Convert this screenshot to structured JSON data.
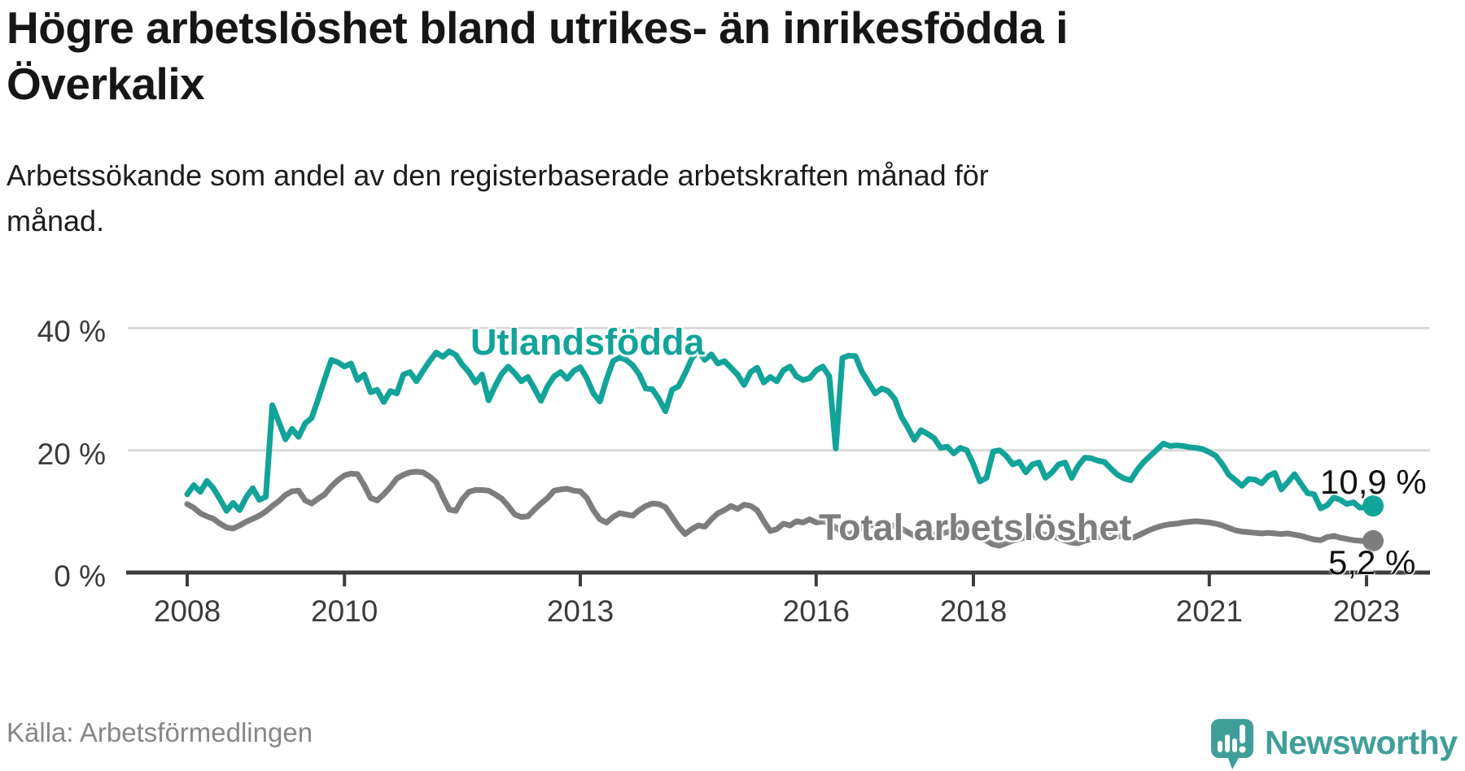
{
  "header": {
    "title": "Högre arbetslöshet bland utrikes- än inrikesfödda i Överkalix",
    "subtitle": "Arbetssökande som andel av den registerbaserade arbetskraften månad för månad."
  },
  "chart": {
    "labels": {
      "series1": "Utlandsfödda",
      "series2": "Total arbetslöshet"
    },
    "end_labels": {
      "series1": "10,9 %",
      "series2": "5,2 %"
    },
    "colors": {
      "series1": "#12a399",
      "series2": "#7d7d7d",
      "grid": "#d9d9d9",
      "axis": "#3d3d3d",
      "text": "#3b3b3b"
    }
  },
  "chart_data": {
    "type": "line",
    "title": "Högre arbetslöshet bland utrikes- än inrikesfödda i Överkalix",
    "xlabel": "",
    "ylabel": "Arbetssökande som andel av den registerbaserade arbetskraften",
    "x_start_year": 2008,
    "x_months_per_point": 1,
    "x_ticks": [
      2008,
      2010,
      2013,
      2016,
      2018,
      2021,
      2023
    ],
    "y_ticks": [
      0,
      20,
      40
    ],
    "y_tick_suffix": " %",
    "y_gridlines": [
      20,
      40
    ],
    "ylim": [
      0,
      42
    ],
    "grid": true,
    "legend_position": "inline-labels",
    "series": [
      {
        "name": "Utlandsfödda",
        "color": "#12a399",
        "end_value_label": "10,9 %",
        "values": [
          12.8,
          14.3,
          13.2,
          15.0,
          13.8,
          12.0,
          10.1,
          11.4,
          10.2,
          12.3,
          13.8,
          11.9,
          12.4,
          27.4,
          24.6,
          21.8,
          23.5,
          22.2,
          24.4,
          25.3,
          28.4,
          31.7,
          34.8,
          34.4,
          33.7,
          34.2,
          31.5,
          32.4,
          29.5,
          29.9,
          27.9,
          29.7,
          29.3,
          32.4,
          32.8,
          31.3,
          33.0,
          34.6,
          36.0,
          35.3,
          36.2,
          35.6,
          34.0,
          32.8,
          31.1,
          32.4,
          28.2,
          30.5,
          32.5,
          33.7,
          32.6,
          31.3,
          32.0,
          30.1,
          28.1,
          30.5,
          32.1,
          32.8,
          31.7,
          33.0,
          33.6,
          31.8,
          29.3,
          28.0,
          31.6,
          34.6,
          35.2,
          34.8,
          33.9,
          32.4,
          30.1,
          30.0,
          28.4,
          26.4,
          29.9,
          30.5,
          32.6,
          35.0,
          36.3,
          34.8,
          35.7,
          34.2,
          34.6,
          33.5,
          32.4,
          30.7,
          32.8,
          33.5,
          31.1,
          32.0,
          31.3,
          33.1,
          33.7,
          32.1,
          31.5,
          31.8,
          33.1,
          33.7,
          32.1,
          20.3,
          35.1,
          35.5,
          35.4,
          32.8,
          31.1,
          29.3,
          30.1,
          29.7,
          28.4,
          25.5,
          23.7,
          21.7,
          23.3,
          22.7,
          22.0,
          20.4,
          20.6,
          19.5,
          20.4,
          20.0,
          17.7,
          14.9,
          15.5,
          19.8,
          20.0,
          19.1,
          17.7,
          18.1,
          16.4,
          17.7,
          18.0,
          15.5,
          16.4,
          17.7,
          18.0,
          15.5,
          17.5,
          18.8,
          18.7,
          18.3,
          18.1,
          17.0,
          16.0,
          15.4,
          15.1,
          16.8,
          18.1,
          19.1,
          20.1,
          21.1,
          20.7,
          20.8,
          20.7,
          20.5,
          20.4,
          20.2,
          19.7,
          19.1,
          17.7,
          16.0,
          15.1,
          14.2,
          15.3,
          15.2,
          14.6,
          15.8,
          16.3,
          13.6,
          14.8,
          16.1,
          14.5,
          13.0,
          12.8,
          10.5,
          11.0,
          12.3,
          11.9,
          11.2,
          11.5,
          10.6,
          10.7,
          10.9
        ]
      },
      {
        "name": "Total arbetslöshet",
        "color": "#7d7d7d",
        "end_value_label": "5,2 %",
        "values": [
          11.2,
          10.6,
          9.7,
          9.2,
          8.8,
          8.0,
          7.4,
          7.2,
          7.7,
          8.3,
          8.8,
          9.3,
          10.0,
          10.9,
          11.7,
          12.7,
          13.3,
          13.4,
          11.8,
          11.3,
          12.1,
          12.8,
          14.1,
          15.1,
          15.9,
          16.2,
          16.1,
          14.3,
          12.2,
          11.8,
          12.8,
          14.0,
          15.4,
          16.0,
          16.4,
          16.5,
          16.4,
          15.7,
          14.8,
          12.4,
          10.3,
          10.1,
          12.0,
          13.2,
          13.5,
          13.5,
          13.4,
          12.8,
          12.1,
          10.9,
          9.5,
          9.1,
          9.2,
          10.3,
          11.3,
          12.2,
          13.4,
          13.6,
          13.7,
          13.4,
          13.3,
          12.2,
          10.2,
          8.7,
          8.2,
          9.1,
          9.7,
          9.5,
          9.3,
          10.2,
          10.9,
          11.3,
          11.2,
          10.7,
          9.1,
          7.5,
          6.3,
          7.1,
          7.7,
          7.5,
          8.7,
          9.7,
          10.2,
          10.9,
          10.4,
          11.1,
          10.9,
          10.2,
          8.4,
          6.8,
          7.1,
          8.0,
          7.7,
          8.4,
          8.2,
          8.7,
          8.2,
          8.4,
          8.0,
          7.4,
          6.6,
          6.2,
          6.8,
          7.3,
          7.6,
          7.9,
          8.1,
          8.0,
          7.6,
          7.2,
          6.6,
          6.0,
          5.5,
          5.8,
          6.2,
          6.4,
          6.6,
          6.9,
          7.0,
          6.8,
          6.4,
          5.8,
          5.2,
          4.6,
          4.4,
          4.8,
          5.2,
          5.5,
          5.8,
          6.1,
          6.3,
          6.2,
          6.0,
          5.6,
          5.2,
          4.9,
          4.8,
          5.2,
          5.5,
          5.8,
          6.0,
          6.2,
          6.0,
          5.8,
          5.5,
          6.0,
          6.5,
          7.0,
          7.4,
          7.7,
          7.9,
          8.0,
          8.2,
          8.3,
          8.4,
          8.3,
          8.2,
          8.0,
          7.7,
          7.3,
          6.9,
          6.7,
          6.6,
          6.5,
          6.4,
          6.5,
          6.4,
          6.3,
          6.4,
          6.2,
          6.0,
          5.7,
          5.4,
          5.3,
          5.8,
          6.0,
          5.7,
          5.5,
          5.3,
          5.2,
          5.1,
          5.2
        ]
      }
    ]
  },
  "footer": {
    "source": "Källa: Arbetsförmedlingen"
  },
  "logo": {
    "text": "Newsworthy"
  }
}
